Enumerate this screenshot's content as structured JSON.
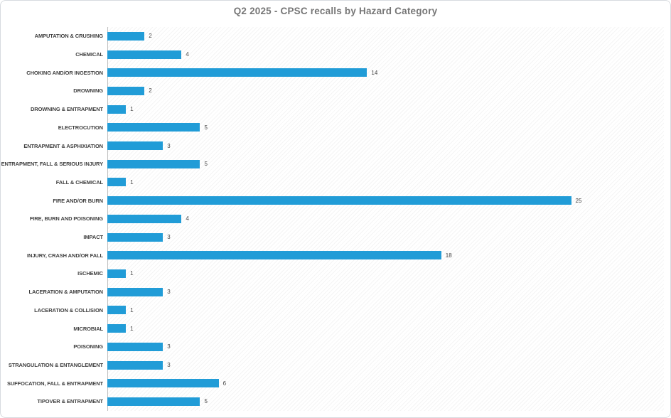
{
  "chart_data": {
    "type": "bar",
    "orientation": "horizontal",
    "title": "Q2 2025 - CPSC recalls by Hazard Category",
    "categories": [
      "AMPUTATION & CRUSHING",
      "CHEMICAL",
      "CHOKING AND/OR INGESTION",
      "DROWNING",
      "DROWNING & ENTRAPMENT",
      "ELECTROCUTION",
      "ENTRAPMENT & ASPHIXIATION",
      "ENTRAPMENT, FALL & SERIOUS INJURY",
      "FALL & CHEMICAL",
      "FIRE AND/OR BURN",
      "FIRE, BURN AND POISONING",
      "IMPACT",
      "INJURY, CRASH AND/OR FALL",
      "ISCHEMIC",
      "LACERATION & AMPUTATION",
      "LACERATION & COLLISION",
      "MICROBIAL",
      "POISONING",
      "STRANGULATION & ENTANGLEMENT",
      "SUFFOCATION, FALL & ENTRAPMENT",
      "TIPOVER & ENTRAPMENT"
    ],
    "values": [
      2,
      4,
      14,
      2,
      1,
      5,
      3,
      5,
      1,
      25,
      4,
      3,
      18,
      1,
      3,
      1,
      1,
      3,
      3,
      6,
      5
    ],
    "xlabel": "",
    "ylabel": "",
    "xlim": [
      0,
      30
    ],
    "grid": false,
    "legend": false,
    "data_labels": true
  },
  "colors": {
    "bar": "#219cd7",
    "title_text": "#767676",
    "category_text": "#3f3f3f",
    "value_text": "#444444",
    "axis_line": "#bfbfbf",
    "frame_border": "#d7dbdf",
    "background": "#ffffff",
    "plot_hatch": "#ebebeb"
  }
}
